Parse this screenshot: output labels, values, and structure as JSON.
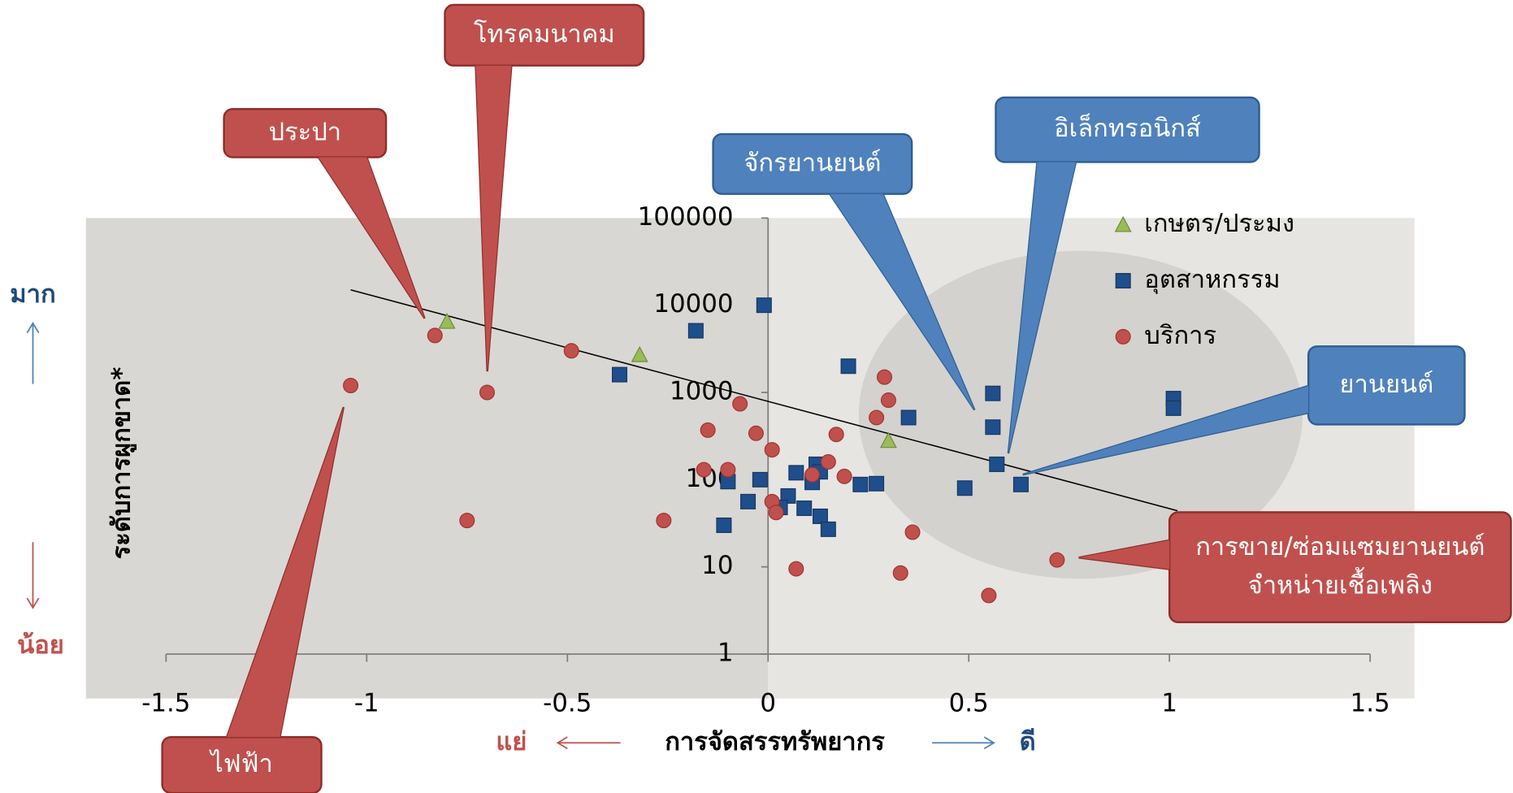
{
  "chart_data": {
    "type": "scatter",
    "y_label": "ระดับการผูกขาด*",
    "x_label": "การจัดสรรทรัพยากร",
    "x_low": "แย่",
    "x_high": "ดี",
    "y_high": "มาก",
    "y_low": "น้อย",
    "xlim": [
      -1.5,
      1.5
    ],
    "xticks": [
      -1.5,
      -1,
      -0.5,
      0,
      0.5,
      1,
      1.5
    ],
    "ylim": [
      1,
      100000
    ],
    "yticks": [
      1,
      10,
      100,
      1000,
      10000,
      100000
    ],
    "yscale": "log",
    "legend": "upper right",
    "series": [
      {
        "name": "เกษตร/ประมง",
        "color": "#9bbb59",
        "marker": "triangle",
        "x": [
          -0.8,
          -0.32,
          0.3
        ],
        "values": [
          6500,
          2700,
          280
        ]
      },
      {
        "name": "อุตสาหกรรม",
        "color": "#1f4e8c",
        "marker": "square",
        "x": [
          -0.01,
          -0.18,
          -0.37,
          0.2,
          0.56,
          0.35,
          0.56,
          1.01,
          1.01,
          0.57,
          0.63,
          0.49,
          -0.1,
          -0.02,
          0.07,
          0.12,
          0.13,
          0.11,
          0.23,
          0.27,
          -0.05,
          0.05,
          0.03,
          0.09,
          0.13,
          0.15,
          -0.11
        ],
        "values": [
          10000,
          5100,
          1600,
          2000,
          975,
          515,
          400,
          850,
          660,
          150,
          88,
          80,
          95,
          100,
          120,
          150,
          123,
          93,
          88,
          90,
          56,
          65,
          48,
          47,
          38,
          27,
          30
        ]
      },
      {
        "name": "บริการ",
        "color": "#c0504d",
        "marker": "circle",
        "x": [
          -0.83,
          -0.49,
          -1.04,
          -0.7,
          -0.07,
          0.29,
          0.3,
          0.27,
          0.17,
          -0.15,
          -0.03,
          0.01,
          -0.16,
          -0.1,
          0.15,
          0.11,
          0.19,
          0.01,
          0.02,
          -0.75,
          -0.26,
          0.36,
          0.72,
          0.07,
          0.33,
          0.55
        ],
        "values": [
          4500,
          3000,
          1200,
          1000,
          740,
          1500,
          815,
          515,
          330,
          370,
          340,
          220,
          130,
          130,
          160,
          114,
          109,
          56,
          42,
          34,
          34,
          25,
          12,
          9.5,
          8.5,
          4.7
        ]
      }
    ],
    "trendline": {
      "x": [
        -1.04,
        1.02
      ],
      "values": [
        15000,
        44
      ]
    },
    "callouts": [
      {
        "lines": [
          "ประปา"
        ],
        "color": "#c0504d"
      },
      {
        "lines": [
          "โทรคมนาคม"
        ],
        "color": "#c0504d"
      },
      {
        "lines": [
          "ไฟฟ้า"
        ],
        "color": "#c0504d"
      },
      {
        "lines": [
          "จักรยานยนต์"
        ],
        "color": "#4f81bd"
      },
      {
        "lines": [
          "อิเล็กทรอนิกส์"
        ],
        "color": "#4f81bd"
      },
      {
        "lines": [
          "ยานยนต์"
        ],
        "color": "#4f81bd"
      },
      {
        "lines": [
          "การขาย/ซ่อมแซมยานยนต์",
          "จำหน่ายเชื้อเพลิง"
        ],
        "color": "#c0504d"
      }
    ]
  }
}
